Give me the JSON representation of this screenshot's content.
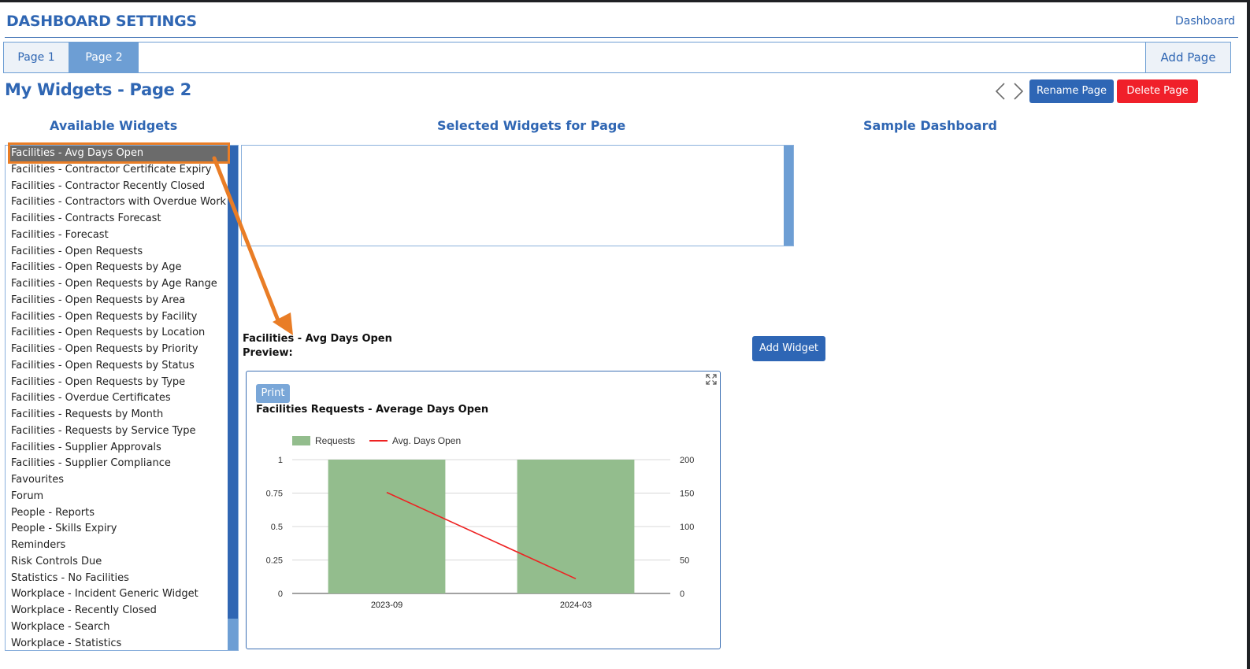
{
  "header": {
    "title": "DASHBOARD SETTINGS",
    "link": "Dashboard"
  },
  "tabs": [
    {
      "label": "Page 1"
    },
    {
      "label": "Page 2"
    }
  ],
  "add_page_label": "Add Page",
  "page_heading": "My Widgets - Page 2",
  "buttons": {
    "rename": "Rename Page",
    "delete": "Delete Page",
    "add_widget": "Add Widget",
    "print": "Print"
  },
  "columns": {
    "available": "Available Widgets",
    "selected": "Selected Widgets for Page",
    "sample": "Sample Dashboard"
  },
  "available_widgets": [
    "Facilities - Avg Days Open",
    "Facilities - Contractor Certificate Expiry",
    "Facilities - Contractor Recently Closed",
    "Facilities - Contractors with Overdue Work",
    "Facilities - Contracts Forecast",
    "Facilities - Forecast",
    "Facilities - Open Requests",
    "Facilities - Open Requests by Age",
    "Facilities - Open Requests by Age Range",
    "Facilities - Open Requests by Area",
    "Facilities - Open Requests by Facility",
    "Facilities - Open Requests by Location",
    "Facilities - Open Requests by Priority",
    "Facilities - Open Requests by Status",
    "Facilities - Open Requests by Type",
    "Facilities - Overdue Certificates",
    "Facilities - Requests by Month",
    "Facilities - Requests by Service Type",
    "Facilities - Supplier Approvals",
    "Facilities - Supplier Compliance",
    "Favourites",
    "Forum",
    "People - Reports",
    "People - Skills Expiry",
    "Reminders",
    "Risk Controls Due",
    "Statistics - No Facilities",
    "Workplace - Incident Generic Widget",
    "Workplace - Recently Closed",
    "Workplace - Search",
    "Workplace - Statistics"
  ],
  "selected_widget_index": 0,
  "preview": {
    "widget_name": "Facilities - Avg Days Open",
    "label": "Preview:"
  },
  "colors": {
    "accent": "#2f66b3",
    "danger": "#f0202a",
    "highlight": "#e97d26",
    "bar": "#93bd8d",
    "line": "#ee2222"
  },
  "icons": {
    "prev": "chevron-left-icon",
    "next": "chevron-right-icon",
    "expand": "expand-icon"
  },
  "chart_data": {
    "type": "bar",
    "title": "Facilities Requests - Average Days Open",
    "categories": [
      "2023-09",
      "2024-03"
    ],
    "series": [
      {
        "name": "Requests",
        "type": "bar",
        "axis": "left",
        "values": [
          1,
          1
        ]
      },
      {
        "name": "Avg. Days Open",
        "type": "line",
        "axis": "right",
        "values": [
          151,
          22
        ]
      }
    ],
    "y_left": {
      "min": 0,
      "max": 1,
      "ticks": [
        "0",
        "0.25",
        "0.5",
        "0.75",
        "1"
      ]
    },
    "y_right": {
      "min": 0,
      "max": 200,
      "ticks": [
        "0",
        "50",
        "100",
        "150",
        "200"
      ]
    },
    "grid": true,
    "legend": "top-left"
  }
}
